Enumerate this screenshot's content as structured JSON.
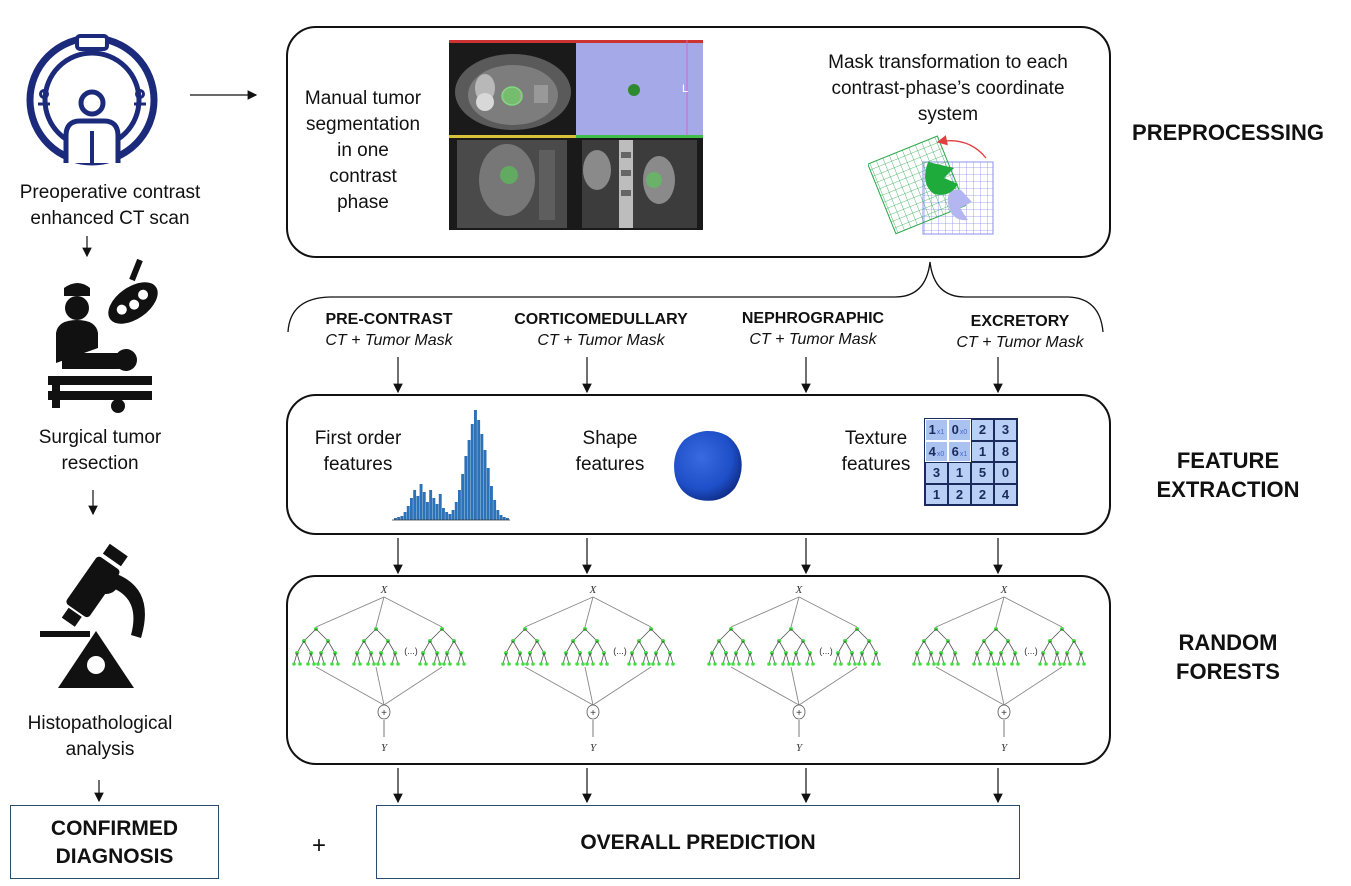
{
  "left_column": {
    "ct_label_line1": "Preoperative contrast",
    "ct_label_line2": "enhanced CT scan",
    "surgery_label_line1": "Surgical tumor",
    "surgery_label_line2": "resection",
    "histo_label_line1": "Histopathological",
    "histo_label_line2": "analysis",
    "confirmed_line1": "CONFIRMED",
    "confirmed_line2": "DIAGNOSIS"
  },
  "preprocessing": {
    "stage_label": "PREPROCESSING",
    "manual_seg_lines": [
      "Manual tumor",
      "segmentation",
      "in one",
      "contrast",
      "phase"
    ],
    "mask_transform_lines": [
      "Mask transformation to each",
      "contrast-phase’s coordinate",
      "system"
    ],
    "viewer_marker": "L"
  },
  "phases": [
    {
      "name": "PRE-CONTRAST",
      "sub": "CT + Tumor Mask"
    },
    {
      "name": "CORTICOMEDULLARY",
      "sub": "CT + Tumor Mask"
    },
    {
      "name": "NEPHROGRAPHIC",
      "sub": "CT + Tumor Mask"
    },
    {
      "name": "EXCRETORY",
      "sub": "CT + Tumor Mask"
    }
  ],
  "features": {
    "stage_label_line1": "FEATURE",
    "stage_label_line2": "EXTRACTION",
    "first_order_line1": "First order",
    "first_order_line2": "features",
    "shape_line1": "Shape",
    "shape_line2": "features",
    "texture_line1": "Texture",
    "texture_line2": "features",
    "texture_grid": [
      [
        "1",
        "0",
        "2",
        "3"
      ],
      [
        "4",
        "6",
        "1",
        "8"
      ],
      [
        "3",
        "1",
        "5",
        "0"
      ],
      [
        "1",
        "2",
        "2",
        "4"
      ]
    ]
  },
  "random_forests": {
    "stage_label_line1": "RANDOM",
    "stage_label_line2": "FORESTS",
    "input_symbol": "X",
    "output_symbol": "Y",
    "ellipsis": "(...)",
    "combine_symbol": "+"
  },
  "bottom": {
    "plus": "+",
    "overall": "OVERALL PREDICTION"
  },
  "colors": {
    "tree_node": "#44dd44",
    "kernel_cell": "#b9cff5",
    "histogram": "#2b72b8",
    "tumor_blob": "#1e4fc8",
    "seg_green": "#22cc44",
    "transform_arrow": "#e04040"
  }
}
